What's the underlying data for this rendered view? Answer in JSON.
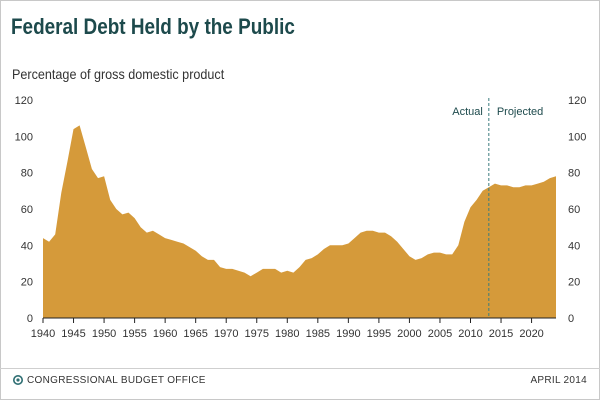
{
  "header": {
    "title": "Federal Debt Held by the Public",
    "subtitle": "Percentage of gross domestic product"
  },
  "footer": {
    "agency": "CONGRESSIONAL BUDGET OFFICE",
    "date": "APRIL 2014"
  },
  "colors": {
    "fill": "#d59a3a",
    "axis": "#222222",
    "divider": "#3c7c7e",
    "annotation": "#1d4a4c"
  },
  "chart_data": {
    "type": "area",
    "title": "Federal Debt Held by the Public",
    "subtitle": "Percentage of gross domestic product",
    "xlim": [
      1940,
      2024
    ],
    "ylim": [
      0,
      120
    ],
    "x_ticks": [
      1940,
      1945,
      1950,
      1955,
      1960,
      1965,
      1970,
      1975,
      1980,
      1985,
      1990,
      1995,
      2000,
      2005,
      2010,
      2015,
      2020
    ],
    "y_ticks": [
      0,
      20,
      40,
      60,
      80,
      100,
      120
    ],
    "grid": false,
    "annotations": {
      "actual_label": "Actual",
      "projected_label": "Projected",
      "divider_year": 2013
    },
    "series": [
      {
        "x": [
          1940,
          1941,
          1942,
          1943,
          1944,
          1945,
          1946,
          1947,
          1948,
          1949,
          1950,
          1951,
          1952,
          1953,
          1954,
          1955,
          1956,
          1957,
          1958,
          1959,
          1960,
          1961,
          1962,
          1963,
          1964,
          1965,
          1966,
          1967,
          1968,
          1969,
          1970,
          1971,
          1972,
          1973,
          1974,
          1975,
          1976,
          1977,
          1978,
          1979,
          1980,
          1981,
          1982,
          1983,
          1984,
          1985,
          1986,
          1987,
          1988,
          1989,
          1990,
          1991,
          1992,
          1993,
          1994,
          1995,
          1996,
          1997,
          1998,
          1999,
          2000,
          2001,
          2002,
          2003,
          2004,
          2005,
          2006,
          2007,
          2008,
          2009,
          2010,
          2011,
          2012,
          2013,
          2014,
          2015,
          2016,
          2017,
          2018,
          2019,
          2020,
          2021,
          2022,
          2023,
          2024
        ],
        "values": [
          44,
          42,
          46,
          69,
          86,
          104,
          106,
          94,
          82,
          77,
          78,
          65,
          60,
          57,
          58,
          55,
          50,
          47,
          48,
          46,
          44,
          43,
          42,
          41,
          39,
          37,
          34,
          32,
          32,
          28,
          27,
          27,
          26,
          25,
          23,
          25,
          27,
          27,
          27,
          25,
          26,
          25,
          28,
          32,
          33,
          35,
          38,
          40,
          40,
          40,
          41,
          44,
          47,
          48,
          48,
          47,
          47,
          45,
          42,
          38,
          34,
          32,
          33,
          35,
          36,
          36,
          35,
          35,
          40,
          53,
          61,
          65,
          70,
          72,
          74,
          73,
          73,
          72,
          72,
          73,
          73,
          74,
          75,
          77,
          78
        ]
      }
    ]
  }
}
